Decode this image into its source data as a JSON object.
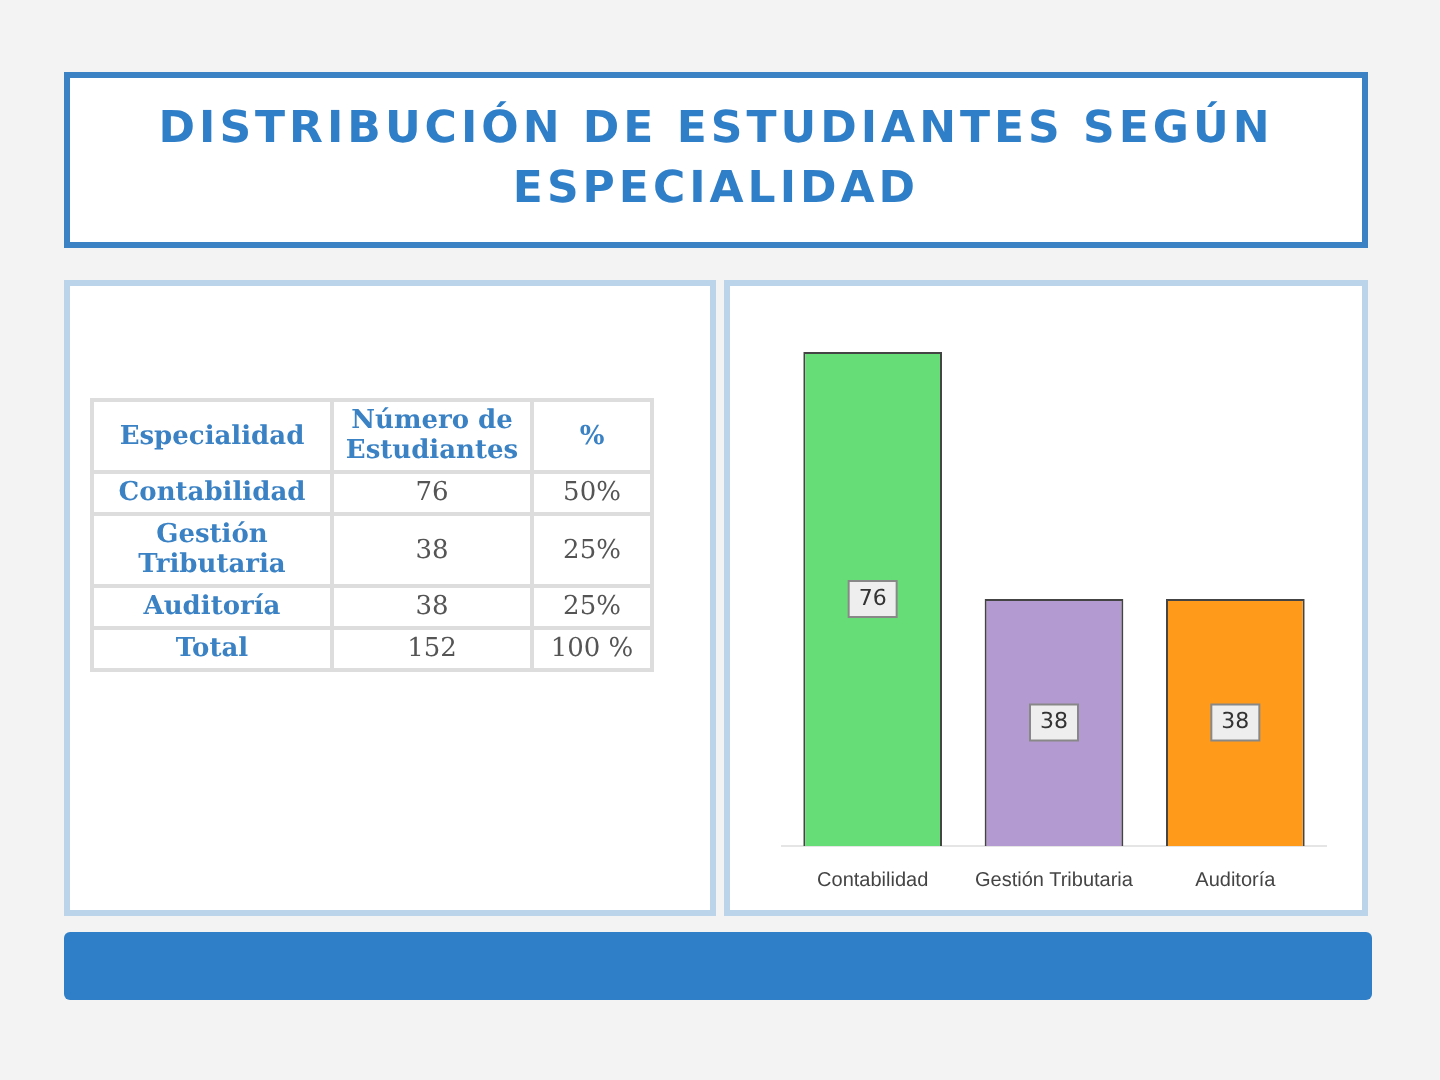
{
  "chart_data": {
    "type": "bar",
    "title": "DISTRIBUCIÓN DE ESTUDIANTES SEGÚN ESPECIALIDAD",
    "categories": [
      "Contabilidad",
      "Gestión Tributaria",
      "Auditoría"
    ],
    "values": [
      76,
      38,
      38
    ],
    "colors": [
      "#66dd77",
      "#b39ad0",
      "#ff9a1a"
    ],
    "data_labels": true,
    "grid": false,
    "legend": false,
    "tick_labels": "x",
    "annotations": [
      "Especialidad",
      "Número de Estudiantes",
      "%",
      "76",
      "50%",
      "38",
      "25%",
      "38",
      "25%",
      "Total",
      "152",
      "100 %"
    ]
  }
}
